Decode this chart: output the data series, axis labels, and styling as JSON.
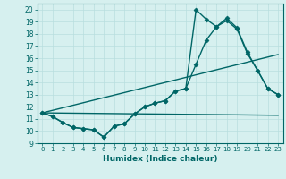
{
  "xlabel": "Humidex (Indice chaleur)",
  "bg_color": "#d6f0ef",
  "line_color": "#006666",
  "grid_color": "#b8dede",
  "xlim": [
    -0.5,
    23.5
  ],
  "ylim": [
    9,
    20.5
  ],
  "xticks": [
    0,
    1,
    2,
    3,
    4,
    5,
    6,
    7,
    8,
    9,
    10,
    11,
    12,
    13,
    14,
    15,
    16,
    17,
    18,
    19,
    20,
    21,
    22,
    23
  ],
  "yticks": [
    9,
    10,
    11,
    12,
    13,
    14,
    15,
    16,
    17,
    18,
    19,
    20
  ],
  "series": [
    {
      "x": [
        0,
        1,
        2,
        3,
        4,
        5,
        6,
        7,
        8,
        9,
        10,
        11,
        12,
        13,
        14,
        15,
        16,
        17,
        18,
        19,
        20,
        21,
        22,
        23
      ],
      "y": [
        11.5,
        11.2,
        10.7,
        10.3,
        10.2,
        10.1,
        9.5,
        10.4,
        10.6,
        11.4,
        12.0,
        12.3,
        12.5,
        13.3,
        13.5,
        20.0,
        19.2,
        18.6,
        19.3,
        18.5,
        16.5,
        15.0,
        13.5,
        13.0
      ],
      "marker": "D",
      "markersize": 2.5,
      "linewidth": 1.0
    },
    {
      "x": [
        0,
        1,
        2,
        3,
        4,
        5,
        6,
        7,
        8,
        9,
        10,
        11,
        12,
        13,
        14,
        15,
        16,
        17,
        18,
        19,
        20,
        21,
        22,
        23
      ],
      "y": [
        11.5,
        11.2,
        10.7,
        10.3,
        10.2,
        10.1,
        9.5,
        10.4,
        10.6,
        11.4,
        12.0,
        12.3,
        12.5,
        13.3,
        13.5,
        15.5,
        17.5,
        18.6,
        19.1,
        18.4,
        16.4,
        15.0,
        13.5,
        13.0
      ],
      "marker": "D",
      "markersize": 2.5,
      "linewidth": 1.0
    },
    {
      "x": [
        0,
        23
      ],
      "y": [
        11.5,
        16.3
      ],
      "marker": null,
      "linewidth": 1.0
    },
    {
      "x": [
        0,
        23
      ],
      "y": [
        11.5,
        11.3
      ],
      "marker": null,
      "linewidth": 1.0
    }
  ]
}
